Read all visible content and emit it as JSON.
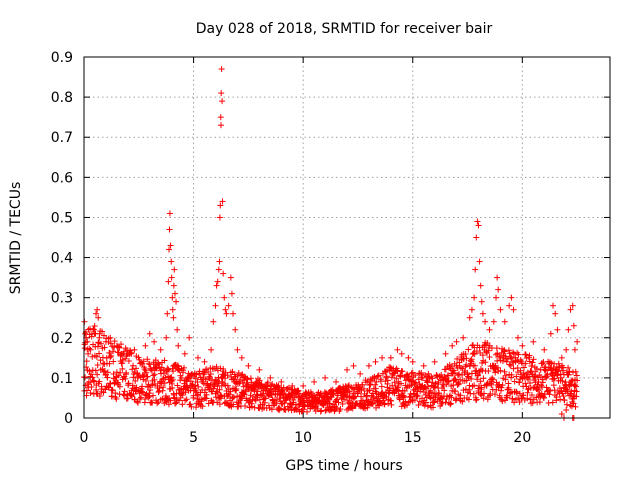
{
  "chart_data": {
    "type": "scatter",
    "title": "Day 028 of 2018, SRMTID for receiver bair",
    "xlabel": "GPS time / hours",
    "ylabel": "SRMTID / TECUs",
    "xlim": [
      0,
      24
    ],
    "ylim": [
      0,
      0.9
    ],
    "grid": true,
    "marker": "+",
    "color": "#ff0000",
    "x_ticks": [
      0,
      5,
      10,
      15,
      20
    ],
    "x_tick_labels": [
      "0",
      "5",
      "10",
      "15",
      "20"
    ],
    "y_ticks": [
      0,
      0.1,
      0.2,
      0.3,
      0.4,
      0.5,
      0.6,
      0.7,
      0.8,
      0.9
    ],
    "y_tick_labels": [
      "0",
      "0.1",
      "0.2",
      "0.3",
      "0.4",
      "0.5",
      "0.6",
      "0.7",
      "0.8",
      "0.9"
    ],
    "baseline_profile": [
      [
        0.0,
        0.13
      ],
      [
        0.5,
        0.15
      ],
      [
        1.0,
        0.13
      ],
      [
        2.0,
        0.11
      ],
      [
        3.0,
        0.09
      ],
      [
        3.8,
        0.09
      ],
      [
        5.0,
        0.07
      ],
      [
        6.0,
        0.08
      ],
      [
        7.0,
        0.07
      ],
      [
        8.0,
        0.06
      ],
      [
        9.0,
        0.05
      ],
      [
        10.0,
        0.04
      ],
      [
        11.0,
        0.04
      ],
      [
        12.0,
        0.05
      ],
      [
        13.0,
        0.06
      ],
      [
        14.0,
        0.08
      ],
      [
        15.0,
        0.07
      ],
      [
        16.0,
        0.07
      ],
      [
        17.0,
        0.09
      ],
      [
        18.0,
        0.12
      ],
      [
        19.0,
        0.11
      ],
      [
        20.0,
        0.1
      ],
      [
        21.0,
        0.09
      ],
      [
        22.0,
        0.08
      ],
      [
        22.5,
        0.07
      ]
    ],
    "series": [
      {
        "name": "SRMTID",
        "points": [
          [
            0.02,
            0.24
          ],
          [
            0.05,
            0.21
          ],
          [
            0.1,
            0.2
          ],
          [
            0.15,
            0.19
          ],
          [
            0.3,
            0.17
          ],
          [
            0.45,
            0.22
          ],
          [
            0.55,
            0.26
          ],
          [
            0.6,
            0.27
          ],
          [
            0.65,
            0.25
          ],
          [
            0.7,
            0.2
          ],
          [
            1.0,
            0.19
          ],
          [
            1.2,
            0.2
          ],
          [
            1.5,
            0.18
          ],
          [
            2.0,
            0.16
          ],
          [
            2.3,
            0.17
          ],
          [
            2.8,
            0.18
          ],
          [
            3.0,
            0.21
          ],
          [
            3.2,
            0.19
          ],
          [
            3.5,
            0.17
          ],
          [
            3.75,
            0.2
          ],
          [
            3.8,
            0.26
          ],
          [
            3.85,
            0.34
          ],
          [
            3.88,
            0.42
          ],
          [
            3.9,
            0.47
          ],
          [
            3.92,
            0.51
          ],
          [
            3.95,
            0.43
          ],
          [
            3.98,
            0.39
          ],
          [
            4.0,
            0.35
          ],
          [
            4.03,
            0.3
          ],
          [
            4.05,
            0.27
          ],
          [
            4.08,
            0.25
          ],
          [
            4.1,
            0.33
          ],
          [
            4.12,
            0.37
          ],
          [
            4.15,
            0.31
          ],
          [
            4.2,
            0.29
          ],
          [
            4.25,
            0.22
          ],
          [
            4.3,
            0.18
          ],
          [
            4.6,
            0.16
          ],
          [
            4.8,
            0.2
          ],
          [
            5.2,
            0.15
          ],
          [
            5.5,
            0.14
          ],
          [
            5.8,
            0.17
          ],
          [
            5.9,
            0.24
          ],
          [
            6.0,
            0.28
          ],
          [
            6.05,
            0.33
          ],
          [
            6.1,
            0.34
          ],
          [
            6.15,
            0.37
          ],
          [
            6.18,
            0.39
          ],
          [
            6.2,
            0.5
          ],
          [
            6.22,
            0.53
          ],
          [
            6.24,
            0.75
          ],
          [
            6.25,
            0.73
          ],
          [
            6.26,
            0.81
          ],
          [
            6.28,
            0.87
          ],
          [
            6.3,
            0.79
          ],
          [
            6.32,
            0.54
          ],
          [
            6.35,
            0.36
          ],
          [
            6.4,
            0.3
          ],
          [
            6.45,
            0.27
          ],
          [
            6.5,
            0.26
          ],
          [
            6.6,
            0.28
          ],
          [
            6.7,
            0.35
          ],
          [
            6.75,
            0.31
          ],
          [
            6.8,
            0.26
          ],
          [
            6.9,
            0.22
          ],
          [
            7.0,
            0.17
          ],
          [
            7.2,
            0.15
          ],
          [
            7.5,
            0.13
          ],
          [
            8.0,
            0.12
          ],
          [
            8.5,
            0.1
          ],
          [
            9.0,
            0.09
          ],
          [
            9.5,
            0.08
          ],
          [
            10.0,
            0.08
          ],
          [
            10.5,
            0.09
          ],
          [
            11.0,
            0.1
          ],
          [
            11.5,
            0.09
          ],
          [
            12.0,
            0.12
          ],
          [
            12.3,
            0.13
          ],
          [
            12.6,
            0.11
          ],
          [
            13.0,
            0.13
          ],
          [
            13.3,
            0.14
          ],
          [
            13.6,
            0.15
          ],
          [
            14.0,
            0.15
          ],
          [
            14.3,
            0.17
          ],
          [
            14.5,
            0.16
          ],
          [
            14.8,
            0.15
          ],
          [
            15.0,
            0.14
          ],
          [
            15.5,
            0.13
          ],
          [
            16.0,
            0.14
          ],
          [
            16.5,
            0.16
          ],
          [
            16.8,
            0.18
          ],
          [
            17.0,
            0.19
          ],
          [
            17.3,
            0.2
          ],
          [
            17.6,
            0.25
          ],
          [
            17.7,
            0.27
          ],
          [
            17.8,
            0.3
          ],
          [
            17.85,
            0.37
          ],
          [
            17.9,
            0.45
          ],
          [
            17.95,
            0.49
          ],
          [
            18.0,
            0.48
          ],
          [
            18.05,
            0.39
          ],
          [
            18.1,
            0.33
          ],
          [
            18.15,
            0.29
          ],
          [
            18.2,
            0.26
          ],
          [
            18.3,
            0.24
          ],
          [
            18.5,
            0.22
          ],
          [
            18.7,
            0.24
          ],
          [
            18.8,
            0.3
          ],
          [
            18.85,
            0.35
          ],
          [
            18.9,
            0.32
          ],
          [
            19.0,
            0.27
          ],
          [
            19.2,
            0.24
          ],
          [
            19.4,
            0.28
          ],
          [
            19.5,
            0.3
          ],
          [
            19.6,
            0.27
          ],
          [
            19.8,
            0.2
          ],
          [
            20.0,
            0.18
          ],
          [
            20.5,
            0.19
          ],
          [
            21.0,
            0.17
          ],
          [
            21.3,
            0.21
          ],
          [
            21.4,
            0.28
          ],
          [
            21.5,
            0.26
          ],
          [
            21.6,
            0.22
          ],
          [
            21.8,
            0.15
          ],
          [
            22.0,
            0.17
          ],
          [
            22.1,
            0.22
          ],
          [
            22.2,
            0.27
          ],
          [
            22.3,
            0.28
          ],
          [
            22.35,
            0.23
          ],
          [
            22.4,
            0.17
          ],
          [
            22.5,
            0.19
          ],
          [
            21.8,
            0.01
          ],
          [
            21.9,
            0.0
          ],
          [
            22.0,
            0.02
          ],
          [
            22.3,
            0.0
          ],
          [
            22.35,
            0.0
          ]
        ]
      }
    ]
  }
}
